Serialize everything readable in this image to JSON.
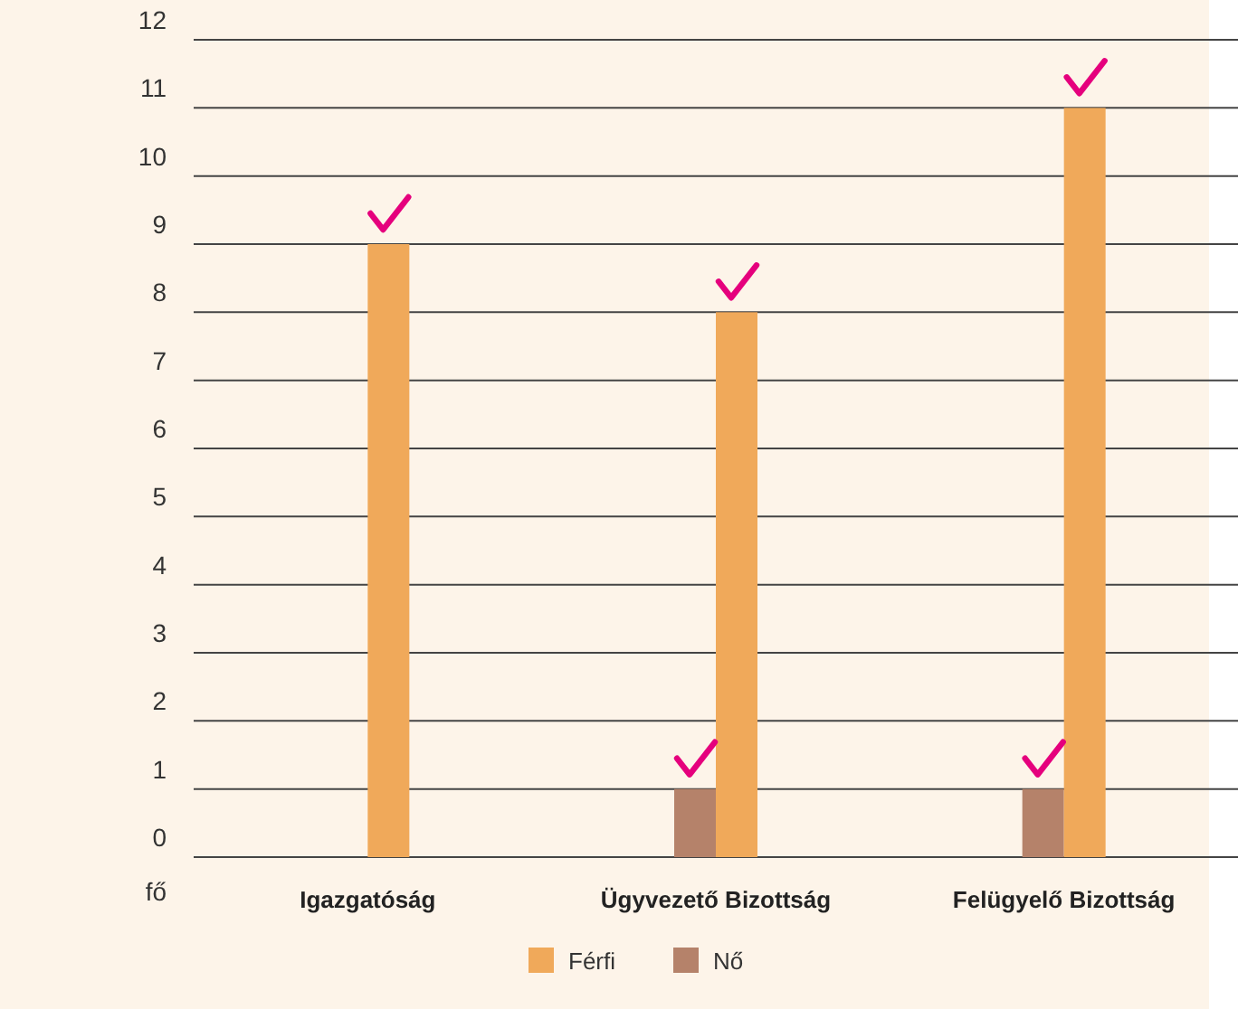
{
  "chart_data": {
    "type": "bar",
    "ylabel": "fő",
    "categories": [
      "Igazgatóság",
      "Ügyvezető Bizottság",
      "Felügyelő Bizottság"
    ],
    "series": [
      {
        "name": "Nő",
        "color": "#b5826a",
        "values": [
          0,
          1,
          1
        ]
      },
      {
        "name": "Férfi",
        "color": "#f0a95a",
        "values": [
          9,
          8,
          11
        ]
      }
    ],
    "ylim": [
      0,
      12
    ],
    "yticks": [
      0,
      1,
      2,
      3,
      4,
      5,
      6,
      7,
      8,
      9,
      10,
      11,
      12
    ],
    "grid": "y",
    "legend": "bottom"
  }
}
